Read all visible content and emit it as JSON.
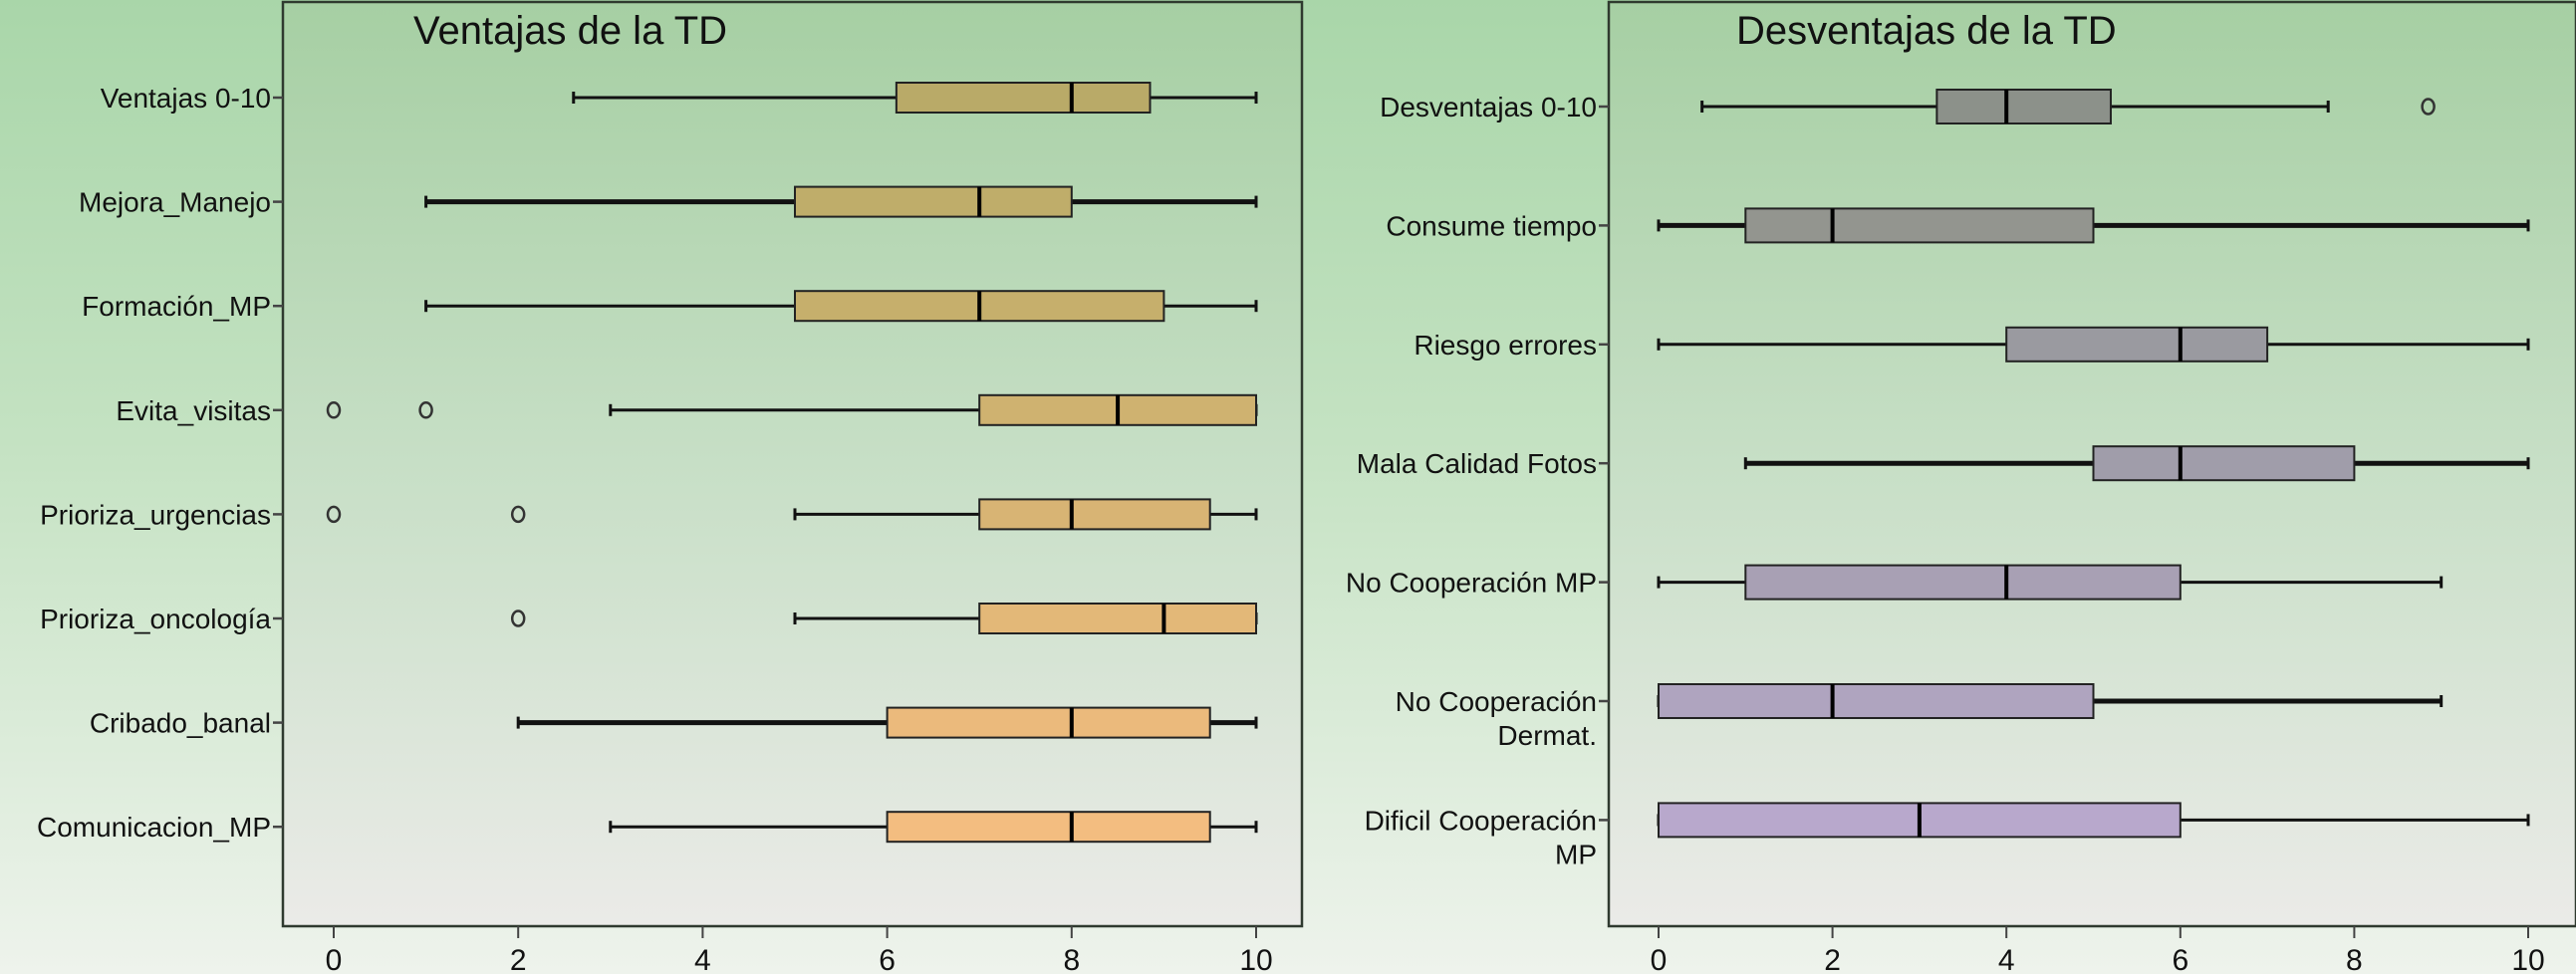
{
  "chart_data": [
    {
      "type": "boxplot",
      "orientation": "horizontal",
      "title": "Ventajas de la TD",
      "xlabel": "",
      "ylabel": "",
      "xlim": [
        0,
        10
      ],
      "xticks": [
        "0",
        "2",
        "4",
        "6",
        "8",
        "10"
      ],
      "grid": false,
      "categories": [
        {
          "label": [
            "Ventajas 0-10"
          ],
          "min": 2.6,
          "q1": 6.1,
          "median": 8,
          "q3": 8.85,
          "max": 10,
          "outliers": [],
          "color": "#b9aa68",
          "whisker_bold": false
        },
        {
          "label": [
            "Mejora_Manejo"
          ],
          "min": 1,
          "q1": 5,
          "median": 7,
          "q3": 8,
          "max": 10,
          "outliers": [],
          "color": "#bfad6a",
          "whisker_bold": true
        },
        {
          "label": [
            "Formación_MP"
          ],
          "min": 1,
          "q1": 5,
          "median": 7,
          "q3": 9,
          "max": 10,
          "outliers": [],
          "color": "#c6af6c",
          "whisker_bold": false
        },
        {
          "label": [
            "Evita_visitas"
          ],
          "min": 3,
          "q1": 7,
          "median": 8.5,
          "q3": 10,
          "max": 10,
          "outliers": [
            0,
            1
          ],
          "color": "#cfb270",
          "whisker_bold": false
        },
        {
          "label": [
            "Prioriza_urgencias"
          ],
          "min": 5,
          "q1": 7,
          "median": 8,
          "q3": 9.5,
          "max": 10,
          "outliers": [
            0,
            2
          ],
          "color": "#d8b474",
          "whisker_bold": false
        },
        {
          "label": [
            "Prioriza_oncología"
          ],
          "min": 5,
          "q1": 7,
          "median": 9,
          "q3": 10,
          "max": 10,
          "outliers": [
            2
          ],
          "color": "#e3b878",
          "whisker_bold": false
        },
        {
          "label": [
            "Cribado_banal"
          ],
          "min": 2,
          "q1": 6,
          "median": 8,
          "q3": 9.5,
          "max": 10,
          "outliers": [],
          "color": "#ebba7c",
          "whisker_bold": true
        },
        {
          "label": [
            "Comunicacion_MP"
          ],
          "min": 3,
          "q1": 6,
          "median": 8,
          "q3": 9.5,
          "max": 10,
          "outliers": [],
          "color": "#f3bd80",
          "whisker_bold": false
        }
      ]
    },
    {
      "type": "boxplot",
      "orientation": "horizontal",
      "title": "Desventajas de la TD",
      "xlabel": "",
      "ylabel": "",
      "xlim": [
        0,
        10
      ],
      "xticks": [
        "0",
        "2",
        "4",
        "6",
        "8",
        "10"
      ],
      "grid": false,
      "categories": [
        {
          "label": [
            "Desventajas 0-10"
          ],
          "min": 0.5,
          "q1": 3.2,
          "median": 4,
          "q3": 5.2,
          "max": 7.7,
          "outliers": [
            8.85
          ],
          "color": "#8c918a",
          "whisker_bold": false
        },
        {
          "label": [
            "Consume tiempo"
          ],
          "min": 0,
          "q1": 1,
          "median": 2,
          "q3": 5,
          "max": 10,
          "outliers": [],
          "color": "#93958f",
          "whisker_bold": true
        },
        {
          "label": [
            "Riesgo errores"
          ],
          "min": 0,
          "q1": 4,
          "median": 6,
          "q3": 7,
          "max": 10,
          "outliers": [],
          "color": "#9a9aa0",
          "whisker_bold": false
        },
        {
          "label": [
            "Mala Calidad Fotos"
          ],
          "min": 1,
          "q1": 5,
          "median": 6,
          "q3": 8,
          "max": 10,
          "outliers": [],
          "color": "#a09daa",
          "whisker_bold": true
        },
        {
          "label": [
            "No Cooperación MP"
          ],
          "min": 0,
          "q1": 1,
          "median": 4,
          "q3": 6,
          "max": 9,
          "outliers": [],
          "color": "#a8a0b4",
          "whisker_bold": false
        },
        {
          "label": [
            "No Cooperación",
            "Dermat."
          ],
          "min": 0,
          "q1": 0,
          "median": 2,
          "q3": 5,
          "max": 9,
          "outliers": [],
          "color": "#afa4bf",
          "whisker_bold": true
        },
        {
          "label": [
            "Dificil Cooperación",
            "MP"
          ],
          "min": 0,
          "q1": 0,
          "median": 3,
          "q3": 6,
          "max": 10,
          "outliers": [],
          "color": "#b8a8cc",
          "whisker_bold": false
        }
      ]
    }
  ]
}
